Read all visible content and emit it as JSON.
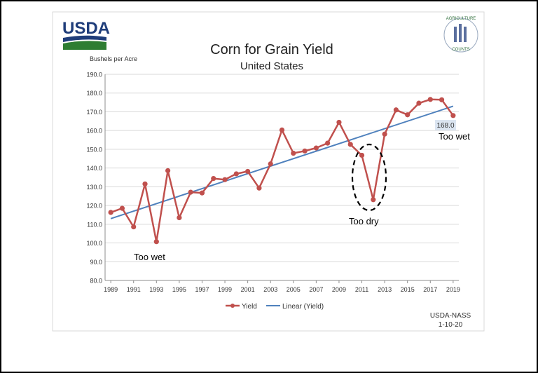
{
  "logo_left": {
    "text": "USDA"
  },
  "logo_right": {
    "top_text": "AGRICULTURE",
    "bottom_text": "COUNTS"
  },
  "source": {
    "line1": "USDA-NASS",
    "line2": "1-10-20"
  },
  "chart_data": {
    "type": "line",
    "title": "Corn for Grain Yield",
    "subtitle": "United States",
    "ylabel": "Bushels per Acre",
    "xlabel": "",
    "ylim": [
      80,
      190
    ],
    "yticks": [
      "80.0",
      "90.0",
      "100.0",
      "110.0",
      "120.0",
      "130.0",
      "140.0",
      "150.0",
      "160.0",
      "170.0",
      "180.0",
      "190.0"
    ],
    "xticks": [
      "1989",
      "1991",
      "1993",
      "1995",
      "1997",
      "1999",
      "2001",
      "2003",
      "2005",
      "2007",
      "2009",
      "2011",
      "2013",
      "2015",
      "2017",
      "2019"
    ],
    "grid": "horizontal",
    "legend_position": "bottom",
    "series": [
      {
        "name": "Yield",
        "color": "#c0504d",
        "x": [
          1989,
          1990,
          1991,
          1992,
          1993,
          1994,
          1995,
          1996,
          1997,
          1998,
          1999,
          2000,
          2001,
          2002,
          2003,
          2004,
          2005,
          2006,
          2007,
          2008,
          2009,
          2010,
          2011,
          2012,
          2013,
          2014,
          2015,
          2016,
          2017,
          2018,
          2019
        ],
        "values": [
          116.3,
          118.5,
          108.6,
          131.5,
          100.7,
          138.6,
          113.5,
          127.1,
          126.7,
          134.4,
          133.8,
          136.9,
          138.2,
          129.3,
          142.2,
          160.3,
          147.9,
          149.1,
          150.7,
          153.3,
          164.4,
          152.6,
          146.8,
          123.1,
          158.1,
          171.0,
          168.4,
          174.6,
          176.6,
          176.4,
          168.0
        ]
      },
      {
        "name": "Linear (Yield)",
        "color": "#4f81bd",
        "x": [
          1989,
          2019
        ],
        "values": [
          113.0,
          173.0
        ]
      }
    ],
    "data_label": {
      "text": "168.0",
      "year": 2019
    },
    "annotations": [
      {
        "text": "Too wet",
        "position": "bottom-left"
      },
      {
        "text": "Too dry",
        "position": "bottom-center"
      },
      {
        "text": "Too wet",
        "position": "right"
      }
    ]
  }
}
